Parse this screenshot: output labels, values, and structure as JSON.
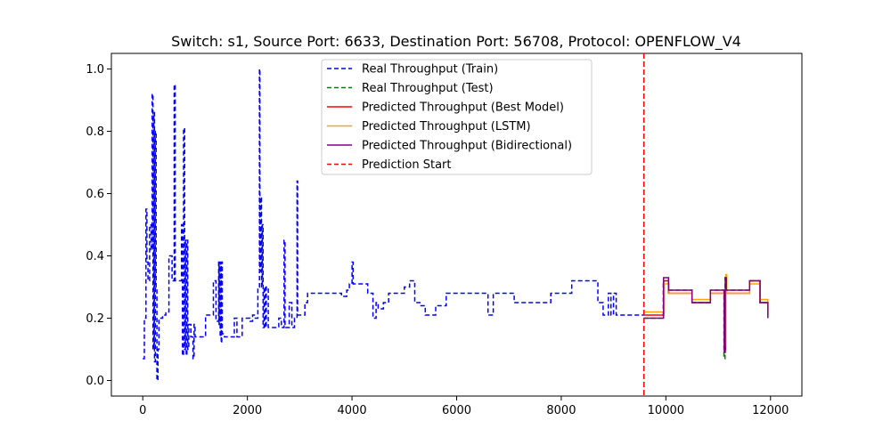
{
  "chart_data": {
    "type": "line",
    "title": "Switch: s1, Source Port: 6633, Destination Port: 56708, Protocol: OPENFLOW_V4",
    "xlabel": "",
    "ylabel": "",
    "xlim": [
      -600,
      12600
    ],
    "ylim": [
      -0.05,
      1.05
    ],
    "grid": false,
    "legend_position": "top-center",
    "xticks": [
      0,
      2000,
      4000,
      6000,
      8000,
      10000,
      12000
    ],
    "yticks": [
      0.0,
      0.2,
      0.4,
      0.6,
      0.8,
      1.0
    ],
    "xtick_labels": [
      "0",
      "2000",
      "4000",
      "6000",
      "8000",
      "10000",
      "12000"
    ],
    "ytick_labels": [
      "0.0",
      "0.2",
      "0.4",
      "0.6",
      "0.8",
      "1.0"
    ],
    "vline": {
      "name": "Prediction Start",
      "x": 9580,
      "color": "#ff0000",
      "dash": true
    },
    "series": [
      {
        "name": "Real Throughput (Train)",
        "color": "#0000ff",
        "dash": true,
        "step": true,
        "points": [
          [
            0,
            0.07
          ],
          [
            30,
            0.2
          ],
          [
            60,
            0.55
          ],
          [
            80,
            0.38
          ],
          [
            100,
            0.32
          ],
          [
            130,
            0.5
          ],
          [
            160,
            0.42
          ],
          [
            180,
            0.92
          ],
          [
            195,
            0.1
          ],
          [
            210,
            0.86
          ],
          [
            225,
            0.06
          ],
          [
            240,
            0.8
          ],
          [
            255,
            0.3
          ],
          [
            270,
            0.0
          ],
          [
            290,
            0.1
          ],
          [
            310,
            0.2
          ],
          [
            380,
            0.21
          ],
          [
            440,
            0.22
          ],
          [
            500,
            0.4
          ],
          [
            560,
            0.32
          ],
          [
            600,
            0.95
          ],
          [
            620,
            0.32
          ],
          [
            700,
            0.32
          ],
          [
            740,
            0.5
          ],
          [
            760,
            0.08
          ],
          [
            780,
            0.81
          ],
          [
            800,
            0.1
          ],
          [
            815,
            0.45
          ],
          [
            830,
            0.08
          ],
          [
            845,
            0.45
          ],
          [
            860,
            0.1
          ],
          [
            880,
            0.18
          ],
          [
            920,
            0.14
          ],
          [
            960,
            0.07
          ],
          [
            980,
            0.18
          ],
          [
            1000,
            0.14
          ],
          [
            1100,
            0.14
          ],
          [
            1200,
            0.21
          ],
          [
            1300,
            0.21
          ],
          [
            1350,
            0.32
          ],
          [
            1400,
            0.19
          ],
          [
            1450,
            0.38
          ],
          [
            1460,
            0.18
          ],
          [
            1470,
            0.38
          ],
          [
            1480,
            0.14
          ],
          [
            1490,
            0.38
          ],
          [
            1500,
            0.12
          ],
          [
            1510,
            0.38
          ],
          [
            1520,
            0.15
          ],
          [
            1560,
            0.14
          ],
          [
            1700,
            0.14
          ],
          [
            1750,
            0.2
          ],
          [
            1800,
            0.14
          ],
          [
            1900,
            0.2
          ],
          [
            2000,
            0.2
          ],
          [
            2050,
            0.19
          ],
          [
            2100,
            0.21
          ],
          [
            2150,
            0.2
          ],
          [
            2200,
            0.3
          ],
          [
            2230,
            1.0
          ],
          [
            2240,
            0.35
          ],
          [
            2260,
            0.59
          ],
          [
            2270,
            0.3
          ],
          [
            2285,
            0.5
          ],
          [
            2300,
            0.17
          ],
          [
            2320,
            0.3
          ],
          [
            2340,
            0.17
          ],
          [
            2360,
            0.3
          ],
          [
            2400,
            0.17
          ],
          [
            2500,
            0.17
          ],
          [
            2600,
            0.2
          ],
          [
            2650,
            0.17
          ],
          [
            2700,
            0.45
          ],
          [
            2720,
            0.17
          ],
          [
            2800,
            0.25
          ],
          [
            2850,
            0.17
          ],
          [
            2900,
            0.2
          ],
          [
            2950,
            0.64
          ],
          [
            2960,
            0.21
          ],
          [
            3100,
            0.25
          ],
          [
            3150,
            0.28
          ],
          [
            3300,
            0.28
          ],
          [
            3500,
            0.28
          ],
          [
            3700,
            0.28
          ],
          [
            3800,
            0.27
          ],
          [
            3900,
            0.29
          ],
          [
            3950,
            0.31
          ],
          [
            4000,
            0.38
          ],
          [
            4020,
            0.31
          ],
          [
            4200,
            0.31
          ],
          [
            4300,
            0.28
          ],
          [
            4400,
            0.2
          ],
          [
            4460,
            0.25
          ],
          [
            4500,
            0.23
          ],
          [
            4600,
            0.25
          ],
          [
            4700,
            0.28
          ],
          [
            4800,
            0.28
          ],
          [
            5000,
            0.3
          ],
          [
            5100,
            0.32
          ],
          [
            5200,
            0.25
          ],
          [
            5300,
            0.24
          ],
          [
            5400,
            0.21
          ],
          [
            5600,
            0.24
          ],
          [
            5800,
            0.28
          ],
          [
            6000,
            0.28
          ],
          [
            6200,
            0.28
          ],
          [
            6400,
            0.28
          ],
          [
            6600,
            0.21
          ],
          [
            6700,
            0.28
          ],
          [
            6900,
            0.28
          ],
          [
            7100,
            0.25
          ],
          [
            7300,
            0.25
          ],
          [
            7500,
            0.25
          ],
          [
            7800,
            0.28
          ],
          [
            8000,
            0.28
          ],
          [
            8200,
            0.32
          ],
          [
            8500,
            0.32
          ],
          [
            8700,
            0.25
          ],
          [
            8800,
            0.21
          ],
          [
            8900,
            0.28
          ],
          [
            8950,
            0.21
          ],
          [
            9000,
            0.28
          ],
          [
            9050,
            0.21
          ],
          [
            9300,
            0.21
          ],
          [
            9580,
            0.21
          ]
        ]
      },
      {
        "name": "Real Throughput (Test)",
        "color": "#008000",
        "dash": true,
        "step": true,
        "points": [
          [
            9580,
            0.2
          ],
          [
            9900,
            0.2
          ],
          [
            9950,
            0.32
          ],
          [
            10050,
            0.29
          ],
          [
            10400,
            0.29
          ],
          [
            10500,
            0.25
          ],
          [
            10850,
            0.29
          ],
          [
            11100,
            0.29
          ],
          [
            11110,
            0.07
          ],
          [
            11130,
            0.33
          ],
          [
            11150,
            0.29
          ],
          [
            11600,
            0.32
          ],
          [
            11800,
            0.25
          ],
          [
            11950,
            0.21
          ]
        ]
      },
      {
        "name": "Predicted Throughput (Best Model)",
        "color": "#ff0000",
        "dash": false,
        "step": true,
        "points": [
          [
            9580,
            0.21
          ],
          [
            9900,
            0.21
          ],
          [
            9960,
            0.32
          ],
          [
            10050,
            0.28
          ],
          [
            10400,
            0.28
          ],
          [
            10500,
            0.25
          ],
          [
            10850,
            0.28
          ],
          [
            11100,
            0.28
          ],
          [
            11120,
            0.1
          ],
          [
            11140,
            0.33
          ],
          [
            11160,
            0.28
          ],
          [
            11600,
            0.32
          ],
          [
            11800,
            0.25
          ],
          [
            11950,
            0.21
          ]
        ]
      },
      {
        "name": "Predicted Throughput (LSTM)",
        "color": "#ffa500",
        "dash": false,
        "step": true,
        "points": [
          [
            9580,
            0.22
          ],
          [
            9900,
            0.22
          ],
          [
            9970,
            0.31
          ],
          [
            10060,
            0.28
          ],
          [
            10400,
            0.28
          ],
          [
            10500,
            0.26
          ],
          [
            10850,
            0.28
          ],
          [
            11100,
            0.28
          ],
          [
            11125,
            0.11
          ],
          [
            11145,
            0.34
          ],
          [
            11165,
            0.28
          ],
          [
            11600,
            0.31
          ],
          [
            11800,
            0.26
          ],
          [
            11950,
            0.22
          ]
        ]
      },
      {
        "name": "Predicted Throughput (Bidirectional)",
        "color": "#800080",
        "dash": false,
        "step": true,
        "points": [
          [
            9580,
            0.2
          ],
          [
            9900,
            0.2
          ],
          [
            9955,
            0.33
          ],
          [
            10050,
            0.29
          ],
          [
            10400,
            0.29
          ],
          [
            10500,
            0.25
          ],
          [
            10850,
            0.29
          ],
          [
            11100,
            0.29
          ],
          [
            11115,
            0.09
          ],
          [
            11135,
            0.33
          ],
          [
            11155,
            0.29
          ],
          [
            11600,
            0.32
          ],
          [
            11800,
            0.25
          ],
          [
            11950,
            0.2
          ]
        ]
      }
    ],
    "legend_entries": [
      "Real Throughput (Train)",
      "Real Throughput (Test)",
      "Predicted Throughput (Best Model)",
      "Predicted Throughput (LSTM)",
      "Predicted Throughput (Bidirectional)",
      "Prediction Start"
    ]
  }
}
